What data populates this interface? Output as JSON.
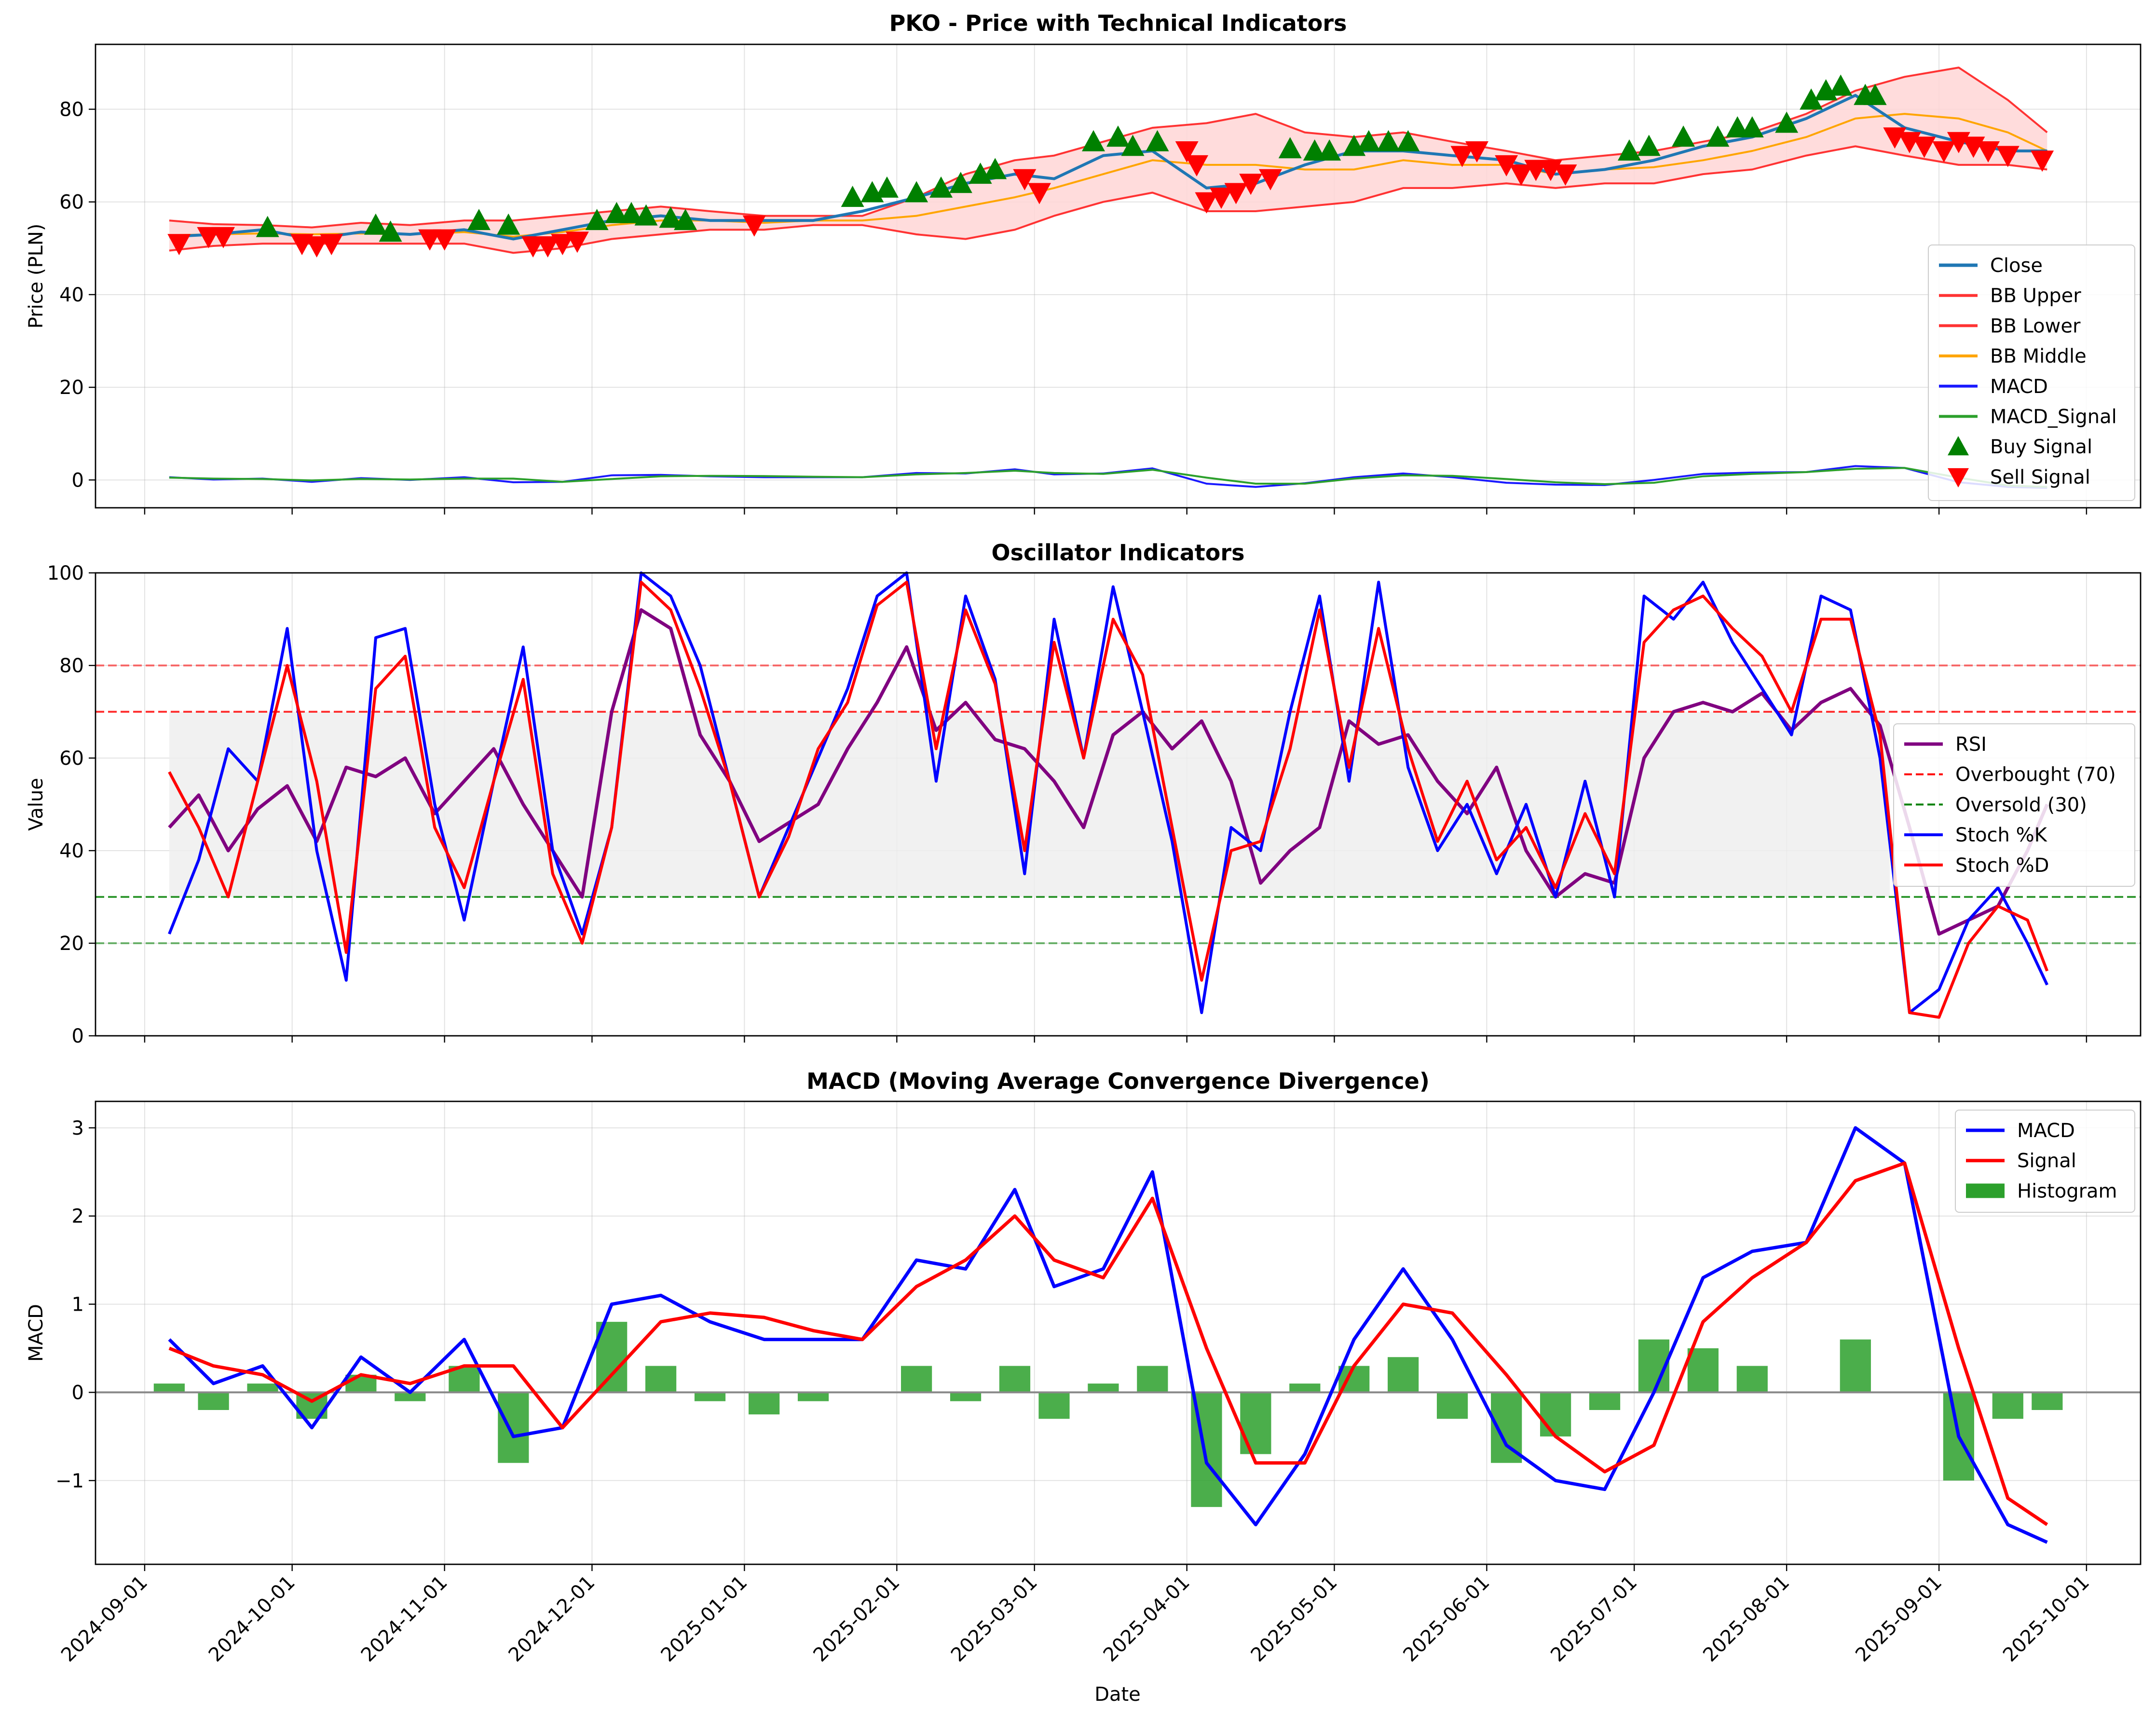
{
  "figure": {
    "xlabel": "Date"
  },
  "x_ticks": [
    "2024-09-01",
    "2024-10-01",
    "2024-11-01",
    "2024-12-01",
    "2025-01-01",
    "2025-02-01",
    "2025-03-01",
    "2025-04-01",
    "2025-05-01",
    "2025-06-01",
    "2025-07-01",
    "2025-08-01",
    "2025-09-01",
    "2025-10-01"
  ],
  "chart_data": [
    {
      "type": "line",
      "title": "PKO - Price with Technical Indicators",
      "xlabel": "",
      "ylabel": "Price (PLN)",
      "ylim": [
        -6,
        94
      ],
      "yticks": [
        0,
        20,
        40,
        60,
        80
      ],
      "x_range": [
        "2024-08-22",
        "2025-10-12"
      ],
      "grid": true,
      "legend": "lower-right",
      "colors": {
        "close": "#1f77b4",
        "bb_upper": "#ff3333",
        "bb_lower": "#ff3333",
        "bb_middle": "#ffa500",
        "macd": "#1a1aff",
        "macd_signal": "#2ca02c",
        "buy": "#008000",
        "sell": "#ff0000",
        "band_fill": "#ffd6d6"
      },
      "x": [
        "2024-09-06",
        "2024-09-15",
        "2024-09-25",
        "2024-10-05",
        "2024-10-15",
        "2024-10-25",
        "2024-11-05",
        "2024-11-15",
        "2024-11-25",
        "2024-12-05",
        "2024-12-15",
        "2024-12-25",
        "2025-01-05",
        "2025-01-15",
        "2025-01-25",
        "2025-02-05",
        "2025-02-15",
        "2025-02-25",
        "2025-03-05",
        "2025-03-15",
        "2025-03-25",
        "2025-04-05",
        "2025-04-15",
        "2025-04-25",
        "2025-05-05",
        "2025-05-15",
        "2025-05-25",
        "2025-06-05",
        "2025-06-15",
        "2025-06-25",
        "2025-07-05",
        "2025-07-15",
        "2025-07-25",
        "2025-08-05",
        "2025-08-15",
        "2025-08-25",
        "2025-09-05",
        "2025-09-15",
        "2025-09-23"
      ],
      "series": [
        {
          "name": "Close",
          "values": [
            52.5,
            53,
            54,
            52,
            53.5,
            53,
            54,
            52,
            54,
            56,
            57,
            56,
            56,
            56,
            58,
            61,
            64,
            66,
            65,
            70,
            71,
            63,
            64,
            68,
            71,
            71,
            70,
            69,
            66,
            67,
            69,
            72,
            74,
            78,
            83,
            76,
            73,
            71,
            71
          ]
        },
        {
          "name": "BB Upper",
          "values": [
            56,
            55.2,
            55,
            54.5,
            55.5,
            55,
            56,
            56,
            57,
            58,
            59,
            58,
            57,
            57,
            57,
            61,
            66,
            69,
            70,
            73,
            76,
            77,
            79,
            75,
            74,
            75,
            73,
            71,
            69,
            70,
            71,
            73,
            75,
            79,
            84,
            87,
            89,
            82,
            75
          ]
        },
        {
          "name": "BB Lower",
          "values": [
            49.5,
            50.5,
            51,
            51,
            51,
            51,
            51,
            49,
            50,
            52,
            53,
            54,
            54,
            55,
            55,
            53,
            52,
            54,
            57,
            60,
            62,
            58,
            58,
            59,
            60,
            63,
            63,
            64,
            63,
            64,
            64,
            66,
            67,
            70,
            72,
            70,
            68,
            68,
            67
          ]
        },
        {
          "name": "BB Middle",
          "values": [
            52.8,
            53,
            53.2,
            53,
            53.2,
            53,
            53.5,
            52.5,
            53.5,
            55,
            56,
            56,
            55.5,
            56,
            56,
            57,
            59,
            61,
            63,
            66,
            69,
            68,
            68,
            67,
            67,
            69,
            68,
            68,
            66,
            67,
            67.5,
            69,
            71,
            74,
            78,
            79,
            78,
            75,
            71
          ]
        },
        {
          "name": "MACD",
          "values": [
            0.6,
            0.1,
            0.3,
            -0.4,
            0.4,
            0,
            0.6,
            -0.5,
            -0.4,
            1.0,
            1.1,
            0.8,
            0.6,
            0.6,
            0.6,
            1.5,
            1.4,
            2.3,
            1.2,
            1.4,
            2.5,
            -0.8,
            -1.5,
            -0.7,
            0.6,
            1.4,
            0.6,
            -0.6,
            -1.0,
            -1.1,
            0,
            1.3,
            1.6,
            1.7,
            3.0,
            2.6,
            -0.5,
            -1.5,
            -1.7
          ]
        },
        {
          "name": "MACD_Signal",
          "values": [
            0.5,
            0.3,
            0.2,
            -0.1,
            0.2,
            0.1,
            0.3,
            0.3,
            -0.4,
            0.2,
            0.8,
            0.9,
            0.85,
            0.7,
            0.6,
            1.2,
            1.5,
            2.0,
            1.5,
            1.3,
            2.2,
            0.5,
            -0.8,
            -0.8,
            0.3,
            1.0,
            0.9,
            0.2,
            -0.5,
            -0.9,
            -0.6,
            0.8,
            1.3,
            1.7,
            2.4,
            2.6,
            0.5,
            -1.2,
            -1.5
          ]
        }
      ],
      "markers": [
        {
          "name": "Buy Signal",
          "x": [
            "2024-09-26",
            "2024-10-18",
            "2024-10-21",
            "2024-11-08",
            "2024-11-14",
            "2024-12-02",
            "2024-12-06",
            "2024-12-09",
            "2024-12-12",
            "2024-12-17",
            "2024-12-20",
            "2025-01-23",
            "2025-01-27",
            "2025-01-30",
            "2025-02-05",
            "2025-02-10",
            "2025-02-14",
            "2025-02-18",
            "2025-02-21",
            "2025-03-13",
            "2025-03-18",
            "2025-03-21",
            "2025-03-26",
            "2025-04-22",
            "2025-04-27",
            "2025-04-30",
            "2025-05-05",
            "2025-05-08",
            "2025-05-12",
            "2025-05-16",
            "2025-06-30",
            "2025-07-04",
            "2025-07-11",
            "2025-07-18",
            "2025-07-22",
            "2025-07-25",
            "2025-08-01",
            "2025-08-06",
            "2025-08-09",
            "2025-08-12",
            "2025-08-17",
            "2025-08-19"
          ],
          "values": [
            54.5,
            55,
            53.5,
            56,
            55,
            56,
            57.5,
            57.5,
            57,
            56.5,
            56,
            61,
            62,
            63,
            62,
            63,
            64,
            66,
            67,
            73,
            74,
            72,
            73,
            71.5,
            71,
            71,
            72,
            73,
            73,
            73,
            71,
            72,
            74,
            74,
            76,
            76,
            77,
            82,
            84,
            85,
            83,
            83
          ]
        },
        {
          "name": "Sell Signal",
          "x": [
            "2024-09-08",
            "2024-09-14",
            "2024-09-17",
            "2024-10-03",
            "2024-10-06",
            "2024-10-09",
            "2024-10-29",
            "2024-11-01",
            "2024-11-19",
            "2024-11-22",
            "2024-11-25",
            "2024-11-28",
            "2025-01-03",
            "2025-02-27",
            "2025-03-02",
            "2025-04-01",
            "2025-04-03",
            "2025-04-05",
            "2025-04-08",
            "2025-04-11",
            "2025-04-14",
            "2025-04-18",
            "2025-05-27",
            "2025-05-30",
            "2025-06-05",
            "2025-06-08",
            "2025-06-11",
            "2025-06-14",
            "2025-06-17",
            "2025-08-23",
            "2025-08-26",
            "2025-08-29",
            "2025-09-02",
            "2025-09-05",
            "2025-09-08",
            "2025-09-11",
            "2025-09-15",
            "2025-09-22"
          ],
          "values": [
            51,
            52.5,
            52.5,
            51,
            50.5,
            51,
            52,
            52,
            50.5,
            50.5,
            51,
            51.5,
            55,
            65,
            62,
            71,
            68,
            60,
            61,
            62,
            64,
            65,
            70,
            71,
            68,
            66,
            67,
            67,
            66,
            74,
            73,
            72,
            71,
            73,
            72,
            71,
            70,
            69
          ]
        }
      ],
      "legend_entries": [
        "Close",
        "BB Upper",
        "BB Lower",
        "BB Middle",
        "MACD",
        "MACD_Signal",
        "Buy Signal",
        "Sell Signal"
      ]
    },
    {
      "type": "line",
      "title": "Oscillator Indicators",
      "xlabel": "",
      "ylabel": "Value",
      "ylim": [
        0,
        100
      ],
      "yticks": [
        0,
        20,
        40,
        60,
        80,
        100
      ],
      "grid": true,
      "legend": "right",
      "colors": {
        "rsi": "#800080",
        "stoch_k": "#0000ff",
        "stoch_d": "#ff0000",
        "overbought": "#ff0000",
        "oversold": "#008000",
        "zone_fill": "#eeeeee"
      },
      "reference_lines": [
        {
          "name": "Overbought (70)",
          "y": 70
        },
        {
          "name": "Oversold (30)",
          "y": 30
        },
        {
          "name": "",
          "y": 80
        },
        {
          "name": "",
          "y": 20
        }
      ],
      "zone_range": [
        "2024-09-06",
        "2025-08-22"
      ],
      "x": [
        "2024-09-06",
        "2024-09-12",
        "2024-09-18",
        "2024-09-24",
        "2024-09-30",
        "2024-10-06",
        "2024-10-12",
        "2024-10-18",
        "2024-10-24",
        "2024-10-30",
        "2024-11-05",
        "2024-11-11",
        "2024-11-17",
        "2024-11-23",
        "2024-11-29",
        "2024-12-05",
        "2024-12-11",
        "2024-12-17",
        "2024-12-23",
        "2024-12-29",
        "2025-01-04",
        "2025-01-10",
        "2025-01-16",
        "2025-01-22",
        "2025-01-28",
        "2025-02-03",
        "2025-02-09",
        "2025-02-15",
        "2025-02-21",
        "2025-02-27",
        "2025-03-05",
        "2025-03-11",
        "2025-03-17",
        "2025-03-23",
        "2025-03-29",
        "2025-04-04",
        "2025-04-10",
        "2025-04-16",
        "2025-04-22",
        "2025-04-28",
        "2025-05-04",
        "2025-05-10",
        "2025-05-16",
        "2025-05-22",
        "2025-05-28",
        "2025-06-03",
        "2025-06-09",
        "2025-06-15",
        "2025-06-21",
        "2025-06-27",
        "2025-07-03",
        "2025-07-09",
        "2025-07-15",
        "2025-07-21",
        "2025-07-27",
        "2025-08-02",
        "2025-08-08",
        "2025-08-14",
        "2025-08-20",
        "2025-08-26",
        "2025-09-01",
        "2025-09-07",
        "2025-09-13",
        "2025-09-19",
        "2025-09-23"
      ],
      "series": [
        {
          "name": "RSI",
          "values": [
            45,
            52,
            40,
            49,
            54,
            42,
            58,
            56,
            60,
            48,
            55,
            62,
            50,
            40,
            30,
            70,
            92,
            88,
            65,
            55,
            42,
            46,
            50,
            62,
            72,
            84,
            66,
            72,
            64,
            62,
            55,
            45,
            65,
            70,
            62,
            68,
            55,
            33,
            40,
            45,
            68,
            63,
            65,
            55,
            48,
            58,
            40,
            30,
            35,
            33,
            60,
            70,
            72,
            70,
            74,
            66,
            72,
            75,
            67,
            45,
            22,
            25,
            28,
            40,
            50
          ]
        },
        {
          "name": "Stoch %K",
          "values": [
            22,
            38,
            62,
            55,
            88,
            40,
            12,
            86,
            88,
            50,
            25,
            55,
            84,
            40,
            22,
            45,
            100,
            95,
            80,
            55,
            30,
            45,
            60,
            75,
            95,
            100,
            55,
            95,
            77,
            35,
            90,
            60,
            97,
            70,
            42,
            5,
            45,
            40,
            70,
            95,
            55,
            98,
            58,
            40,
            50,
            35,
            50,
            30,
            55,
            30,
            95,
            90,
            98,
            85,
            75,
            65,
            95,
            92,
            60,
            5,
            10,
            25,
            32,
            20,
            11
          ]
        },
        {
          "name": "Stoch %D",
          "values": [
            57,
            45,
            30,
            55,
            80,
            55,
            18,
            75,
            82,
            45,
            32,
            55,
            77,
            35,
            20,
            45,
            98,
            92,
            75,
            55,
            30,
            43,
            62,
            72,
            93,
            98,
            62,
            92,
            76,
            40,
            85,
            60,
            90,
            78,
            45,
            12,
            40,
            42,
            62,
            92,
            58,
            88,
            62,
            42,
            55,
            38,
            45,
            32,
            48,
            35,
            85,
            92,
            95,
            88,
            82,
            70,
            90,
            90,
            65,
            5,
            4,
            20,
            28,
            25,
            14
          ]
        }
      ],
      "legend_entries": [
        "RSI",
        "Overbought (70)",
        "Oversold (30)",
        "Stoch %K",
        "Stoch %D"
      ]
    },
    {
      "type": "line",
      "title": "MACD (Moving Average Convergence Divergence)",
      "xlabel": "Date",
      "ylabel": "MACD",
      "ylim": [
        -1.95,
        3.3
      ],
      "yticks": [
        -1,
        0,
        1,
        2,
        3
      ],
      "y_tick_labels": [
        "−1",
        "0",
        "1",
        "2",
        "3"
      ],
      "grid": true,
      "legend": "top-right",
      "colors": {
        "macd": "#0000ff",
        "signal": "#ff0000",
        "histogram": "#2ca02c",
        "zero_line": "#888888"
      },
      "x": [
        "2024-09-06",
        "2024-09-15",
        "2024-09-25",
        "2024-10-05",
        "2024-10-15",
        "2024-10-25",
        "2024-11-05",
        "2024-11-15",
        "2024-11-25",
        "2024-12-05",
        "2024-12-15",
        "2024-12-25",
        "2025-01-05",
        "2025-01-15",
        "2025-01-25",
        "2025-02-05",
        "2025-02-15",
        "2025-02-25",
        "2025-03-05",
        "2025-03-15",
        "2025-03-25",
        "2025-04-05",
        "2025-04-15",
        "2025-04-25",
        "2025-05-05",
        "2025-05-15",
        "2025-05-25",
        "2025-06-05",
        "2025-06-15",
        "2025-06-25",
        "2025-07-05",
        "2025-07-15",
        "2025-07-25",
        "2025-08-05",
        "2025-08-15",
        "2025-08-25",
        "2025-09-05",
        "2025-09-15",
        "2025-09-23"
      ],
      "series": [
        {
          "name": "MACD",
          "values": [
            0.6,
            0.1,
            0.3,
            -0.4,
            0.4,
            0,
            0.6,
            -0.5,
            -0.4,
            1.0,
            1.1,
            0.8,
            0.6,
            0.6,
            0.6,
            1.5,
            1.4,
            2.3,
            1.2,
            1.4,
            2.5,
            -0.8,
            -1.5,
            -0.7,
            0.6,
            1.4,
            0.6,
            -0.6,
            -1.0,
            -1.1,
            0,
            1.3,
            1.6,
            1.7,
            3.0,
            2.6,
            -0.5,
            -1.5,
            -1.7
          ]
        },
        {
          "name": "Signal",
          "values": [
            0.5,
            0.3,
            0.2,
            -0.1,
            0.2,
            0.1,
            0.3,
            0.3,
            -0.4,
            0.2,
            0.8,
            0.9,
            0.85,
            0.7,
            0.6,
            1.2,
            1.5,
            2.0,
            1.5,
            1.3,
            2.2,
            0.5,
            -0.8,
            -0.8,
            0.3,
            1.0,
            0.9,
            0.2,
            -0.5,
            -0.9,
            -0.6,
            0.8,
            1.3,
            1.7,
            2.4,
            2.6,
            0.5,
            -1.2,
            -1.5
          ]
        },
        {
          "name": "Histogram",
          "values": [
            0.1,
            -0.2,
            0.1,
            -0.3,
            0.2,
            -0.1,
            0.3,
            -0.8,
            0,
            0.8,
            0.3,
            -0.1,
            -0.25,
            -0.1,
            0,
            0.3,
            -0.1,
            0.3,
            -0.3,
            0.1,
            0.3,
            -1.3,
            -0.7,
            0.1,
            0.3,
            0.4,
            -0.3,
            -0.8,
            -0.5,
            -0.2,
            0.6,
            0.5,
            0.3,
            0,
            0.6,
            0,
            -1.0,
            -0.3,
            -0.2
          ]
        }
      ],
      "legend_entries": [
        "MACD",
        "Signal",
        "Histogram"
      ]
    }
  ]
}
